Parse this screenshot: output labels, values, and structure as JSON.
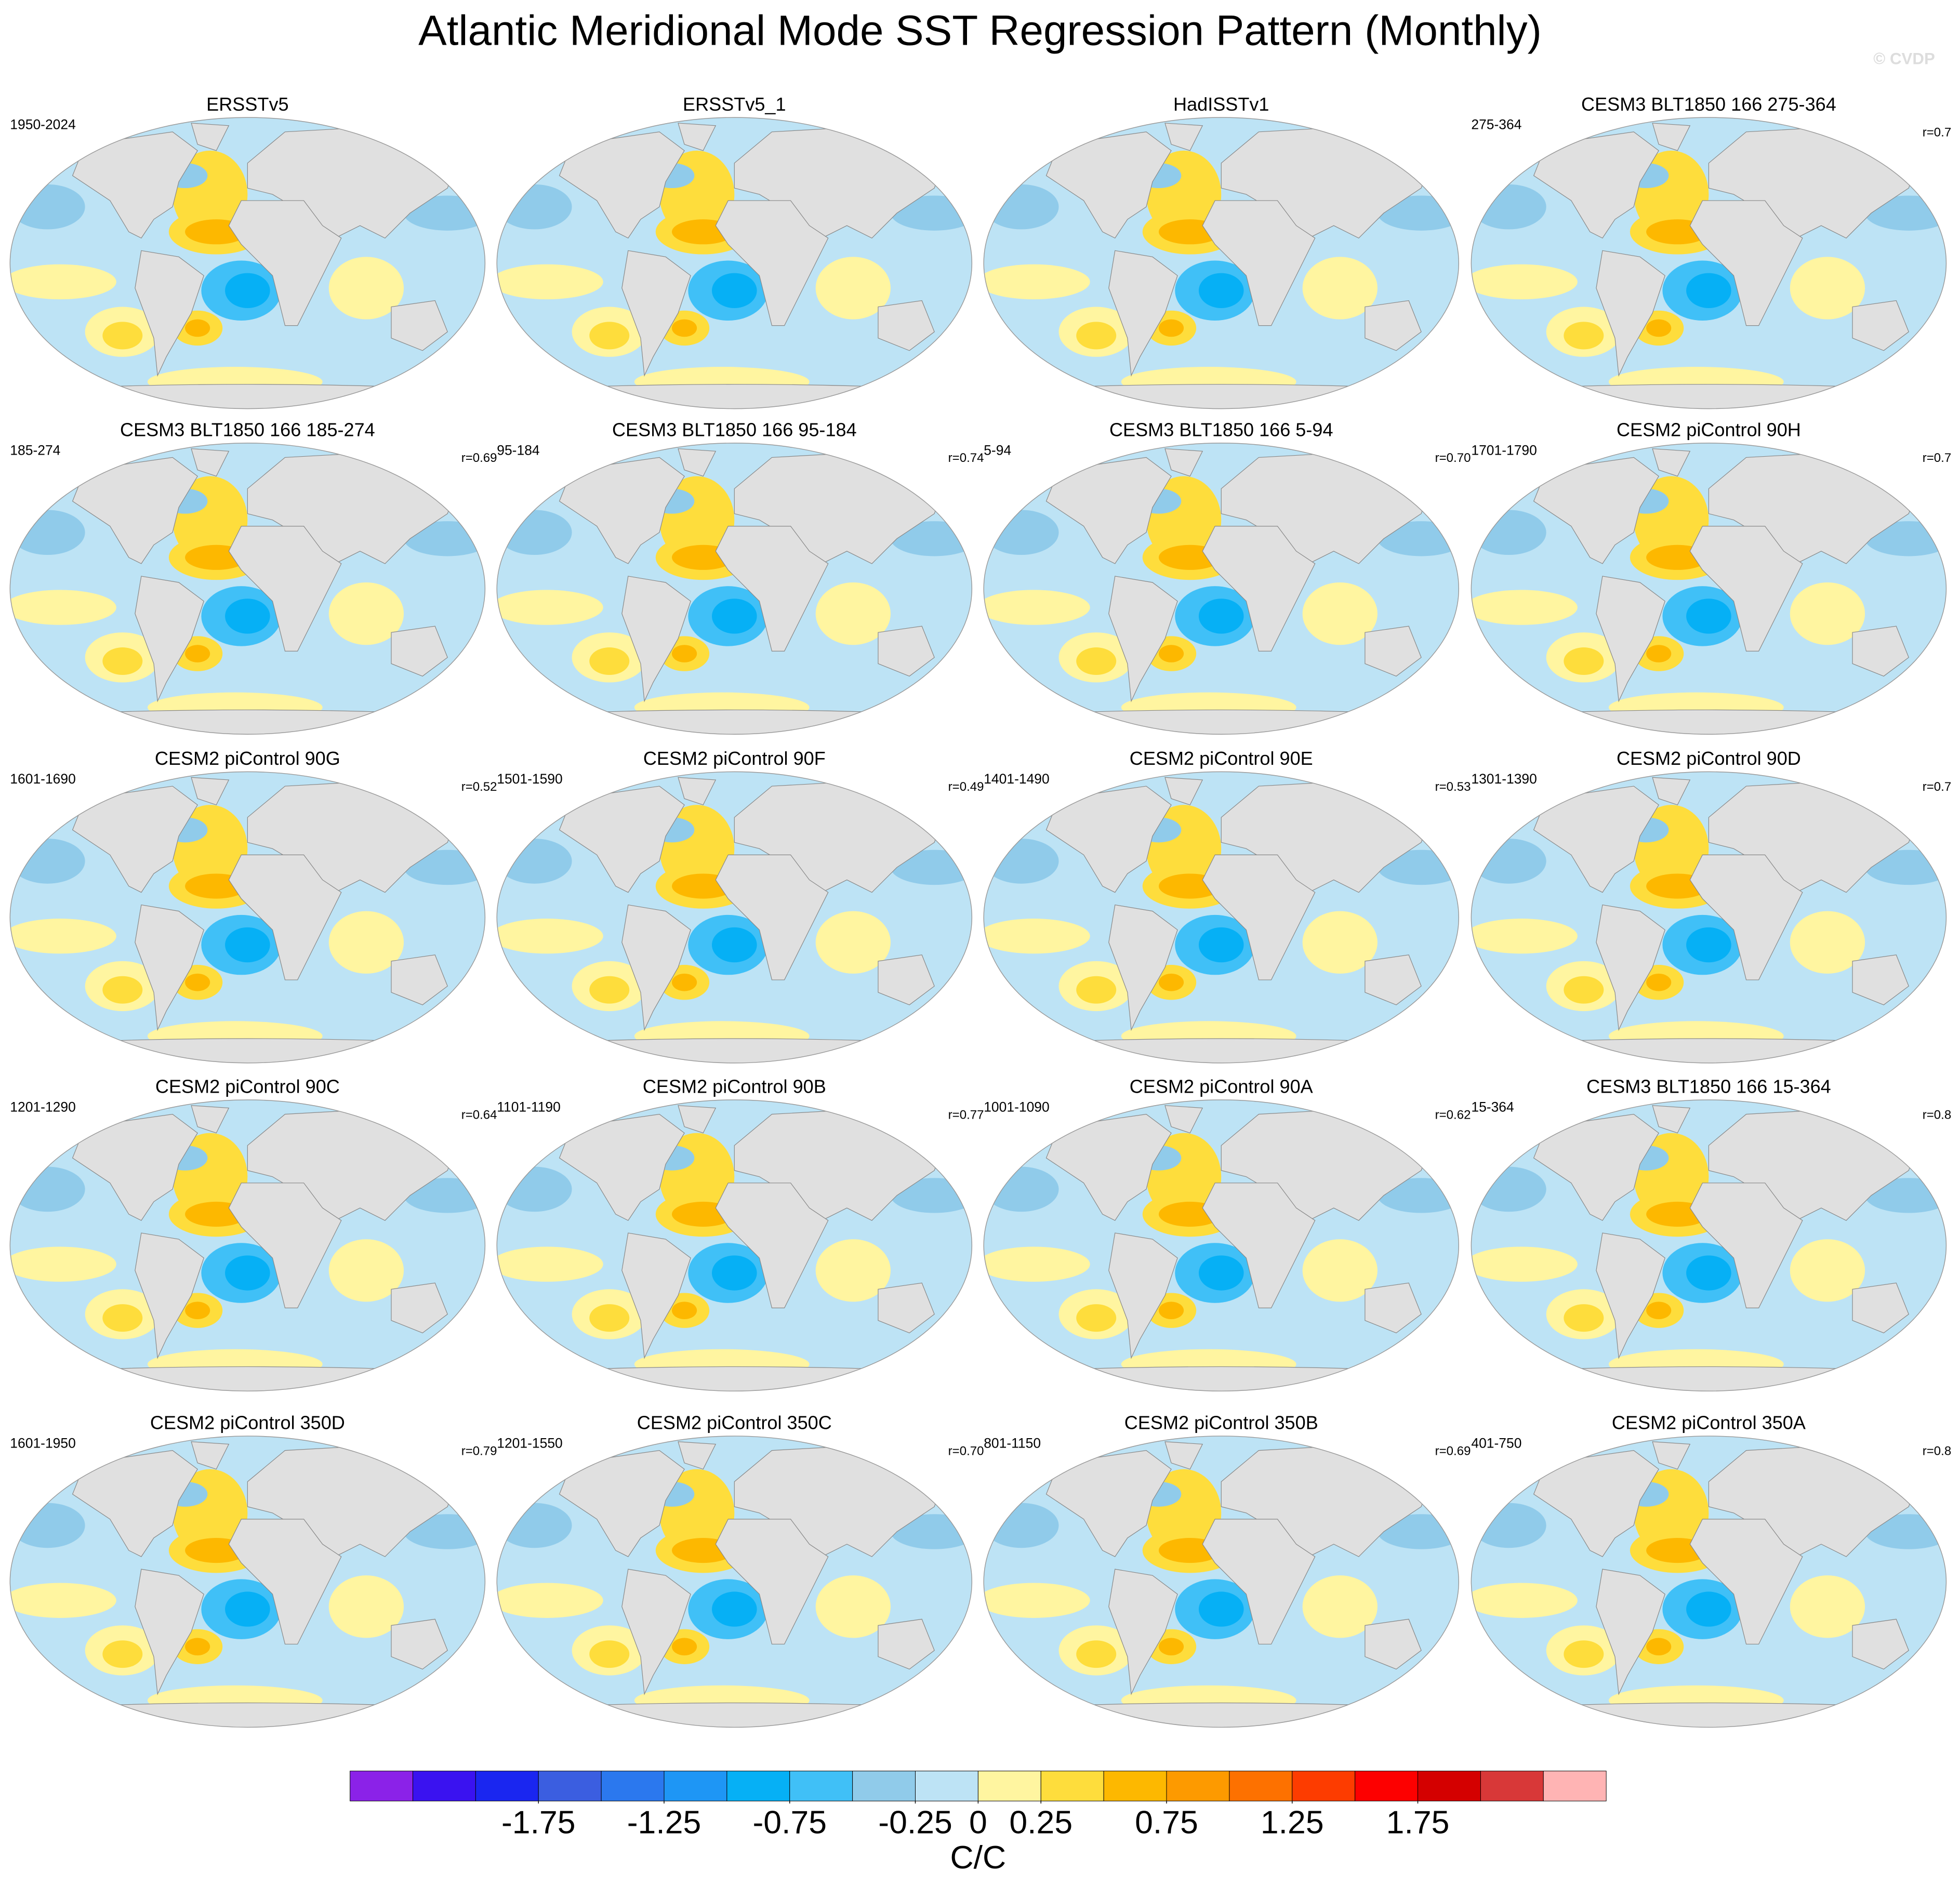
{
  "title": "Atlantic Meridional Mode SST Regression Pattern (Monthly)",
  "watermark": "© CVDP",
  "panels": [
    {
      "title": "ERSSTv5",
      "period": "1950-2024"
    },
    {
      "title": "ERSSTv5_1"
    },
    {
      "title": "HadISSTv1"
    },
    {
      "title": "CESM3 BLT1850 166 275-364",
      "period": "275-364",
      "r": "r=0.7"
    },
    {
      "title": "CESM3 BLT1850 166 185-274",
      "period": "185-274",
      "r": "r=0.69"
    },
    {
      "title": "CESM3 BLT1850 166 95-184",
      "period": "95-184",
      "r": "r=0.74"
    },
    {
      "title": "CESM3 BLT1850 166 5-94",
      "period": "5-94",
      "r": "r=0.70"
    },
    {
      "title": "CESM2 piControl 90H",
      "period": "1701-1790",
      "r": "r=0.7"
    },
    {
      "title": "CESM2 piControl 90G",
      "period": "1601-1690",
      "r": "r=0.52"
    },
    {
      "title": "CESM2 piControl 90F",
      "period": "1501-1590",
      "r": "r=0.49"
    },
    {
      "title": "CESM2 piControl 90E",
      "period": "1401-1490",
      "r": "r=0.53"
    },
    {
      "title": "CESM2 piControl 90D",
      "period": "1301-1390",
      "r": "r=0.7"
    },
    {
      "title": "CESM2 piControl 90C",
      "period": "1201-1290",
      "r": "r=0.64"
    },
    {
      "title": "CESM2 piControl 90B",
      "period": "1101-1190",
      "r": "r=0.77"
    },
    {
      "title": "CESM2 piControl 90A",
      "period": "1001-1090",
      "r": "r=0.62"
    },
    {
      "title": "CESM3 BLT1850 166 15-364",
      "period": "15-364",
      "r": "r=0.8"
    },
    {
      "title": "CESM2 piControl 350D",
      "period": "1601-1950",
      "r": "r=0.79"
    },
    {
      "title": "CESM2 piControl 350C",
      "period": "1201-1550",
      "r": "r=0.70"
    },
    {
      "title": "CESM2 piControl 350B",
      "period": "801-1150",
      "r": "r=0.69"
    },
    {
      "title": "CESM2 piControl 350A",
      "period": "401-750",
      "r": "r=0.8"
    }
  ],
  "colorbar": {
    "colors": [
      "#8b22e8",
      "#3a12f0",
      "#1a26f0",
      "#3b5ee0",
      "#2b78ee",
      "#1e96f5",
      "#06b0f5",
      "#40c0f7",
      "#90cbea",
      "#bde3f5",
      "#fff5a0",
      "#fedd3c",
      "#fdb800",
      "#fd9a00",
      "#fd7100",
      "#fd3c00",
      "#fd0000",
      "#d40000",
      "#d83838",
      "#ffb4b4"
    ],
    "lim": [
      -2.5,
      2.5
    ],
    "ticks": [
      -1.75,
      -1.25,
      -0.75,
      -0.25,
      0,
      0.25,
      0.75,
      1.25,
      1.75
    ],
    "label": "C/C"
  }
}
